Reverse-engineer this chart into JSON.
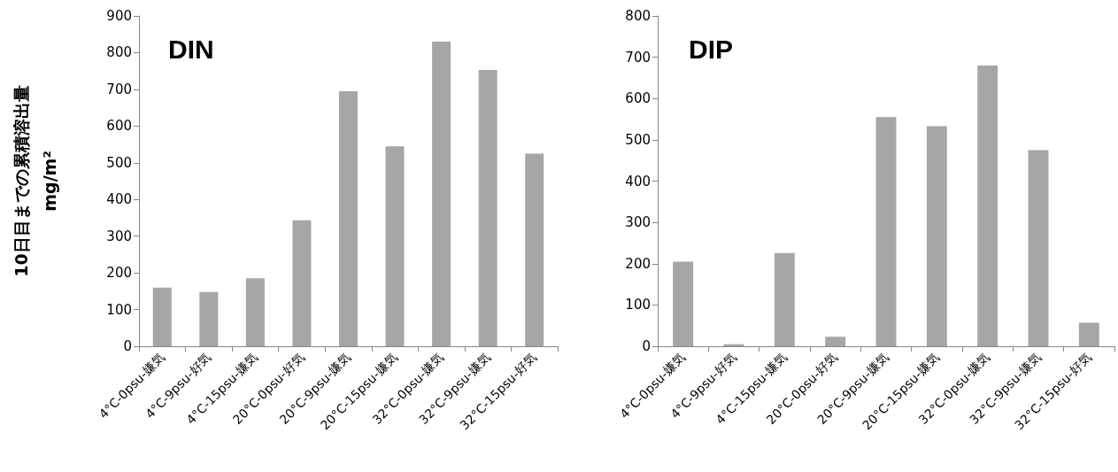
{
  "chart_data": [
    {
      "type": "bar",
      "title": "DIN",
      "ylabel": "10日目までの累積溶出量\nmg/m²",
      "categories": [
        "4°C-0psu-嫌気",
        "4°C-9psu-好気",
        "4°C-15psu-嫌気",
        "20°C-0psu-好気",
        "20°C-9psu-嫌気",
        "20°C-15psu-嫌気",
        "32°C-0psu-嫌気",
        "32°C-9psu-嫌気",
        "32°C-15psu-好気"
      ],
      "values": [
        160,
        148,
        185,
        343,
        695,
        545,
        830,
        753,
        525
      ],
      "color": "#a6a6a6",
      "ylim": [
        0,
        900
      ],
      "yticks": [
        0,
        100,
        200,
        300,
        400,
        500,
        600,
        700,
        800,
        900
      ],
      "grid": false
    },
    {
      "type": "bar",
      "title": "DIP",
      "categories": [
        "4°C-0psu-嫌気",
        "4°C-9psu-好気",
        "4°C-15psu-嫌気",
        "20°C-0psu-好気",
        "20°C-9psu-嫌気",
        "20°C-15psu-嫌気",
        "32°C-0psu-嫌気",
        "32°C-9psu-嫌気",
        "32°C-15psu-好気"
      ],
      "values": [
        205,
        5,
        226,
        23,
        555,
        533,
        680,
        475,
        57
      ],
      "color": "#a6a6a6",
      "ylim": [
        0,
        800
      ],
      "yticks": [
        0,
        100,
        200,
        300,
        400,
        500,
        600,
        700,
        800
      ],
      "grid": false
    }
  ]
}
